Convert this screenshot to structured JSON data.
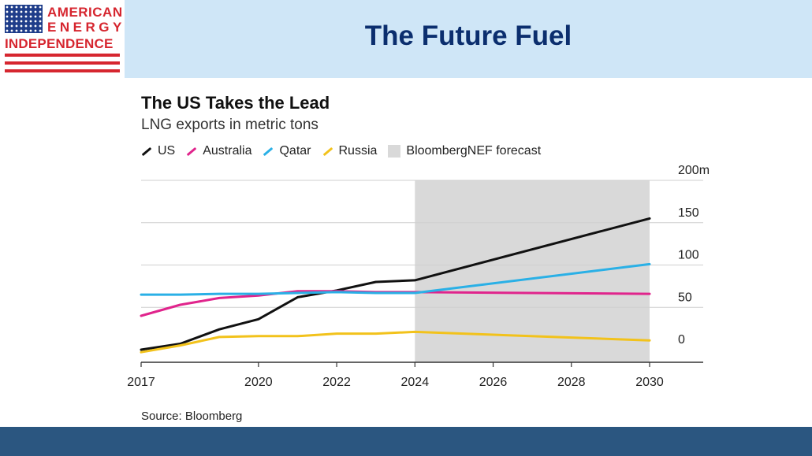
{
  "logo": {
    "line1": "AMERICAN",
    "line2": "ENERGY",
    "line3": "INDEPENDENCE"
  },
  "slide_title": "The Future Fuel",
  "colors": {
    "header_band": "#cfe6f7",
    "footer_band": "#2b5680",
    "title": "#0b2e6e",
    "brand_red": "#d6262f"
  },
  "chart_data": {
    "type": "line",
    "title": "The US Takes the Lead",
    "subtitle": "LNG exports in metric tons",
    "source": "Source: Bloomberg",
    "x_ticks": [
      "2017",
      "2020",
      "2022",
      "2024",
      "2026",
      "2028",
      "2030"
    ],
    "y_ticks": [
      "200m",
      "150",
      "100",
      "50",
      "0"
    ],
    "y_tick_values": [
      200,
      150,
      100,
      50,
      0
    ],
    "ylim": [
      0,
      200
    ],
    "xlim": [
      2017,
      2030
    ],
    "forecast": {
      "label": "BloombergNEF forecast",
      "start": 2024,
      "end": 2030,
      "color": "#d9d9d9"
    },
    "series": [
      {
        "name": "US",
        "color": "#111111",
        "x": [
          2017,
          2018,
          2019,
          2020,
          2021,
          2022,
          2023,
          2024,
          2030
        ],
        "values": [
          0,
          7,
          24,
          36,
          62,
          70,
          80,
          82,
          155
        ]
      },
      {
        "name": "Australia",
        "color": "#e0248c",
        "x": [
          2017,
          2018,
          2019,
          2020,
          2021,
          2022,
          2023,
          2024,
          2030
        ],
        "values": [
          40,
          53,
          61,
          64,
          69,
          69,
          68,
          68,
          66
        ]
      },
      {
        "name": "Qatar",
        "color": "#2ab0e6",
        "x": [
          2017,
          2018,
          2019,
          2020,
          2021,
          2022,
          2023,
          2024,
          2030
        ],
        "values": [
          65,
          65,
          66,
          66,
          67,
          68,
          67,
          67,
          101
        ]
      },
      {
        "name": "Russia",
        "color": "#f2c21b",
        "x": [
          2017,
          2018,
          2019,
          2020,
          2021,
          2022,
          2023,
          2024,
          2030
        ],
        "values": [
          -3,
          5,
          15,
          16,
          16,
          19,
          19,
          21,
          11
        ]
      }
    ]
  }
}
